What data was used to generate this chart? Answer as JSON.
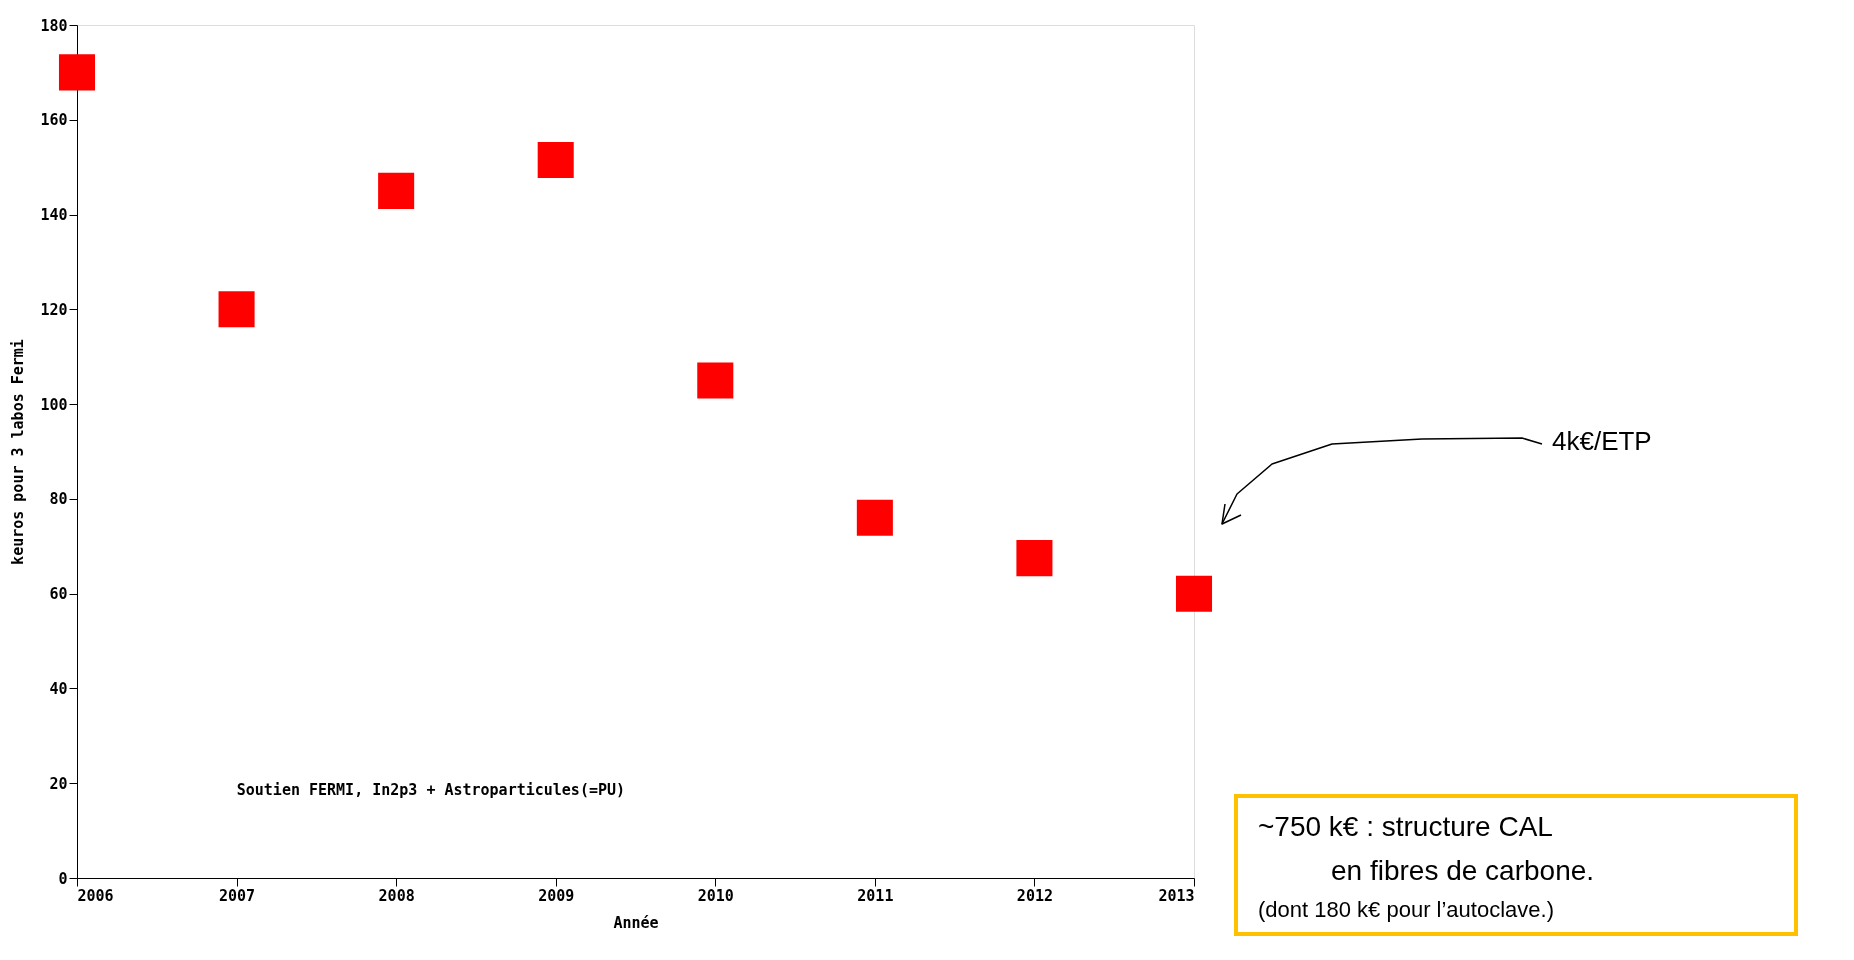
{
  "chart_data": {
    "type": "scatter",
    "xlabel": "Année",
    "ylabel": "keuros pour 3 labos Fermi",
    "x": [
      2006,
      2007,
      2008,
      2009,
      2010,
      2011,
      2012,
      2013
    ],
    "series": [
      {
        "color": "#ff0000",
        "values": [
          170,
          120,
          145,
          151.5,
          105,
          76,
          67.5,
          60
        ]
      }
    ],
    "xlim": [
      2006,
      2013
    ],
    "xticks": [
      2006,
      2007,
      2008,
      2009,
      2010,
      2011,
      2012,
      2013
    ],
    "ylim": [
      0,
      180
    ],
    "yticks": [
      0,
      20,
      40,
      60,
      80,
      100,
      120,
      140,
      160,
      180
    ],
    "marker": "square",
    "grid": false,
    "annotations": [
      "Soutien FERMI, In2p3 + Astroparticules(=PU)",
      "4k€/ETP",
      "~750 k€ : structure CAL",
      "en fibres de carbone.",
      "(dont 180 k€ pour l’autoclave.)"
    ]
  }
}
